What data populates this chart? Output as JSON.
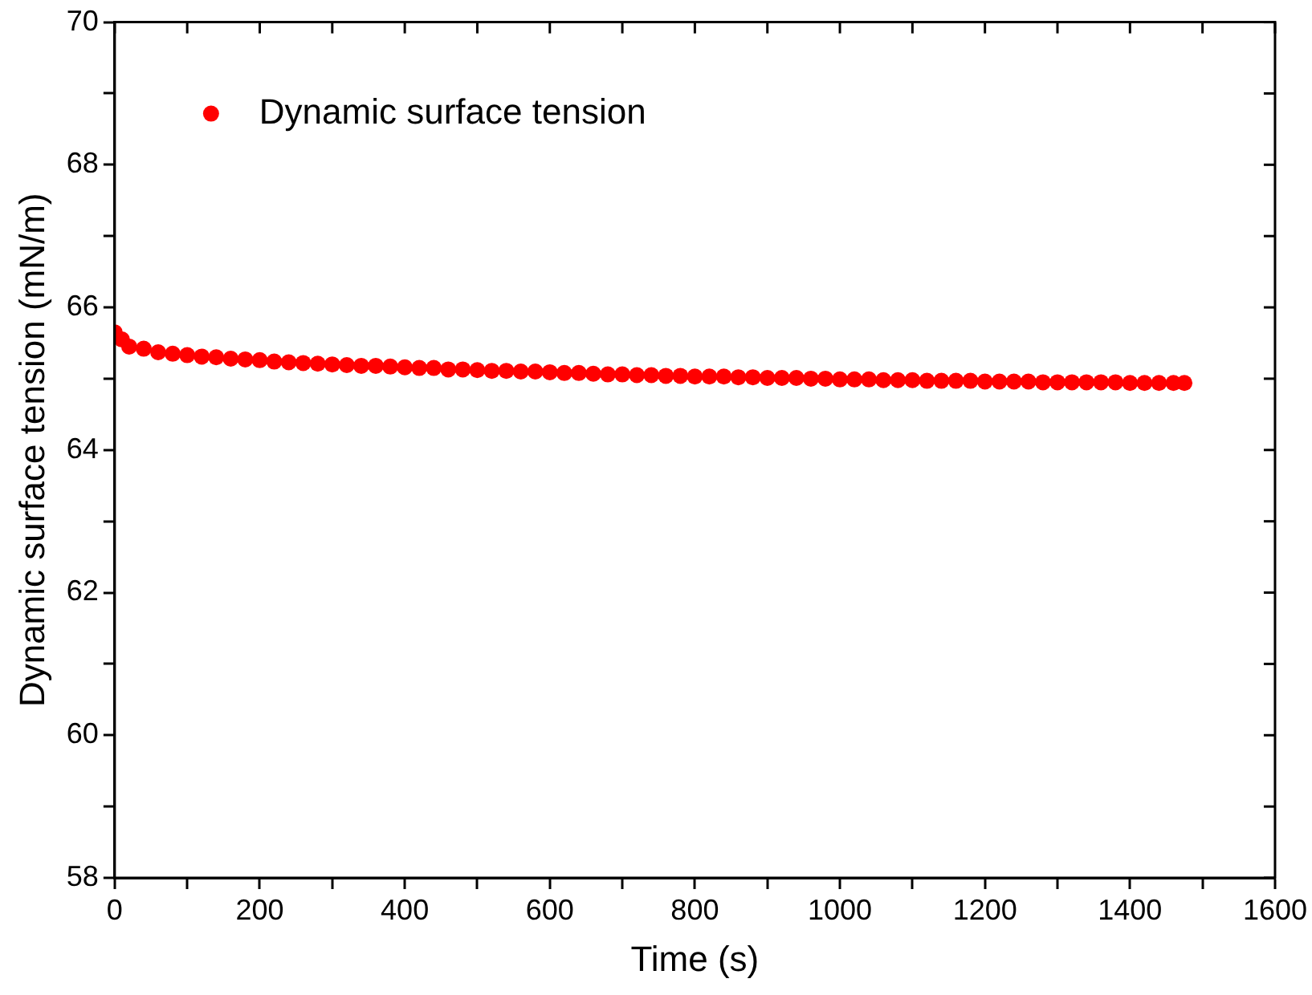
{
  "chart_data": {
    "type": "scatter",
    "xlabel": "Time (s)",
    "ylabel": "Dynamic surface tension (mN/m)",
    "xlim": [
      0,
      1600
    ],
    "ylim": [
      58,
      70
    ],
    "xticks": [
      0,
      {
        "value": 100,
        "label": null
      },
      200,
      {
        "value": 300,
        "label": null
      },
      400,
      {
        "value": 500,
        "label": null
      },
      600,
      {
        "value": 700,
        "label": null
      },
      800,
      {
        "value": 900,
        "label": null
      },
      1000,
      {
        "value": 1100,
        "label": null
      },
      1200,
      {
        "value": 1300,
        "label": null
      },
      1400,
      {
        "value": 1500,
        "label": null
      },
      1600
    ],
    "yticks": [
      58,
      {
        "value": 59,
        "label": null
      },
      60,
      {
        "value": 61,
        "label": null
      },
      62,
      {
        "value": 63,
        "label": null
      },
      64,
      {
        "value": 65,
        "label": null
      },
      66,
      {
        "value": 67,
        "label": null
      },
      68,
      {
        "value": 69,
        "label": null
      },
      70
    ],
    "grid": false,
    "legend": "top left",
    "marker": "circle",
    "series": [
      {
        "name": "Dynamic surface tension",
        "color": "#ff0000",
        "x": [
          0,
          10,
          20,
          40,
          60,
          80,
          100,
          120,
          140,
          160,
          180,
          200,
          220,
          240,
          260,
          280,
          300,
          320,
          340,
          360,
          380,
          400,
          420,
          440,
          460,
          480,
          500,
          520,
          540,
          560,
          580,
          600,
          620,
          640,
          660,
          680,
          700,
          720,
          740,
          760,
          780,
          800,
          820,
          840,
          860,
          880,
          900,
          920,
          940,
          960,
          980,
          1000,
          1020,
          1040,
          1060,
          1080,
          1100,
          1120,
          1140,
          1160,
          1180,
          1200,
          1220,
          1240,
          1260,
          1280,
          1300,
          1320,
          1340,
          1360,
          1380,
          1400,
          1420,
          1440,
          1460,
          1475
        ],
        "values": [
          65.65,
          65.55,
          65.45,
          65.42,
          65.37,
          65.35,
          65.33,
          65.31,
          65.3,
          65.28,
          65.27,
          65.26,
          65.24,
          65.23,
          65.22,
          65.21,
          65.2,
          65.19,
          65.18,
          65.18,
          65.17,
          65.16,
          65.15,
          65.15,
          65.13,
          65.13,
          65.12,
          65.11,
          65.11,
          65.1,
          65.1,
          65.09,
          65.08,
          65.08,
          65.07,
          65.06,
          65.06,
          65.05,
          65.05,
          65.04,
          65.04,
          65.03,
          65.03,
          65.03,
          65.02,
          65.02,
          65.01,
          65.01,
          65.01,
          65.0,
          65.0,
          64.99,
          64.99,
          64.99,
          64.98,
          64.98,
          64.98,
          64.97,
          64.97,
          64.97,
          64.97,
          64.96,
          64.96,
          64.96,
          64.96,
          64.95,
          64.95,
          64.95,
          64.95,
          64.95,
          64.95,
          64.94,
          64.94,
          64.94,
          64.94,
          64.94
        ]
      }
    ]
  }
}
